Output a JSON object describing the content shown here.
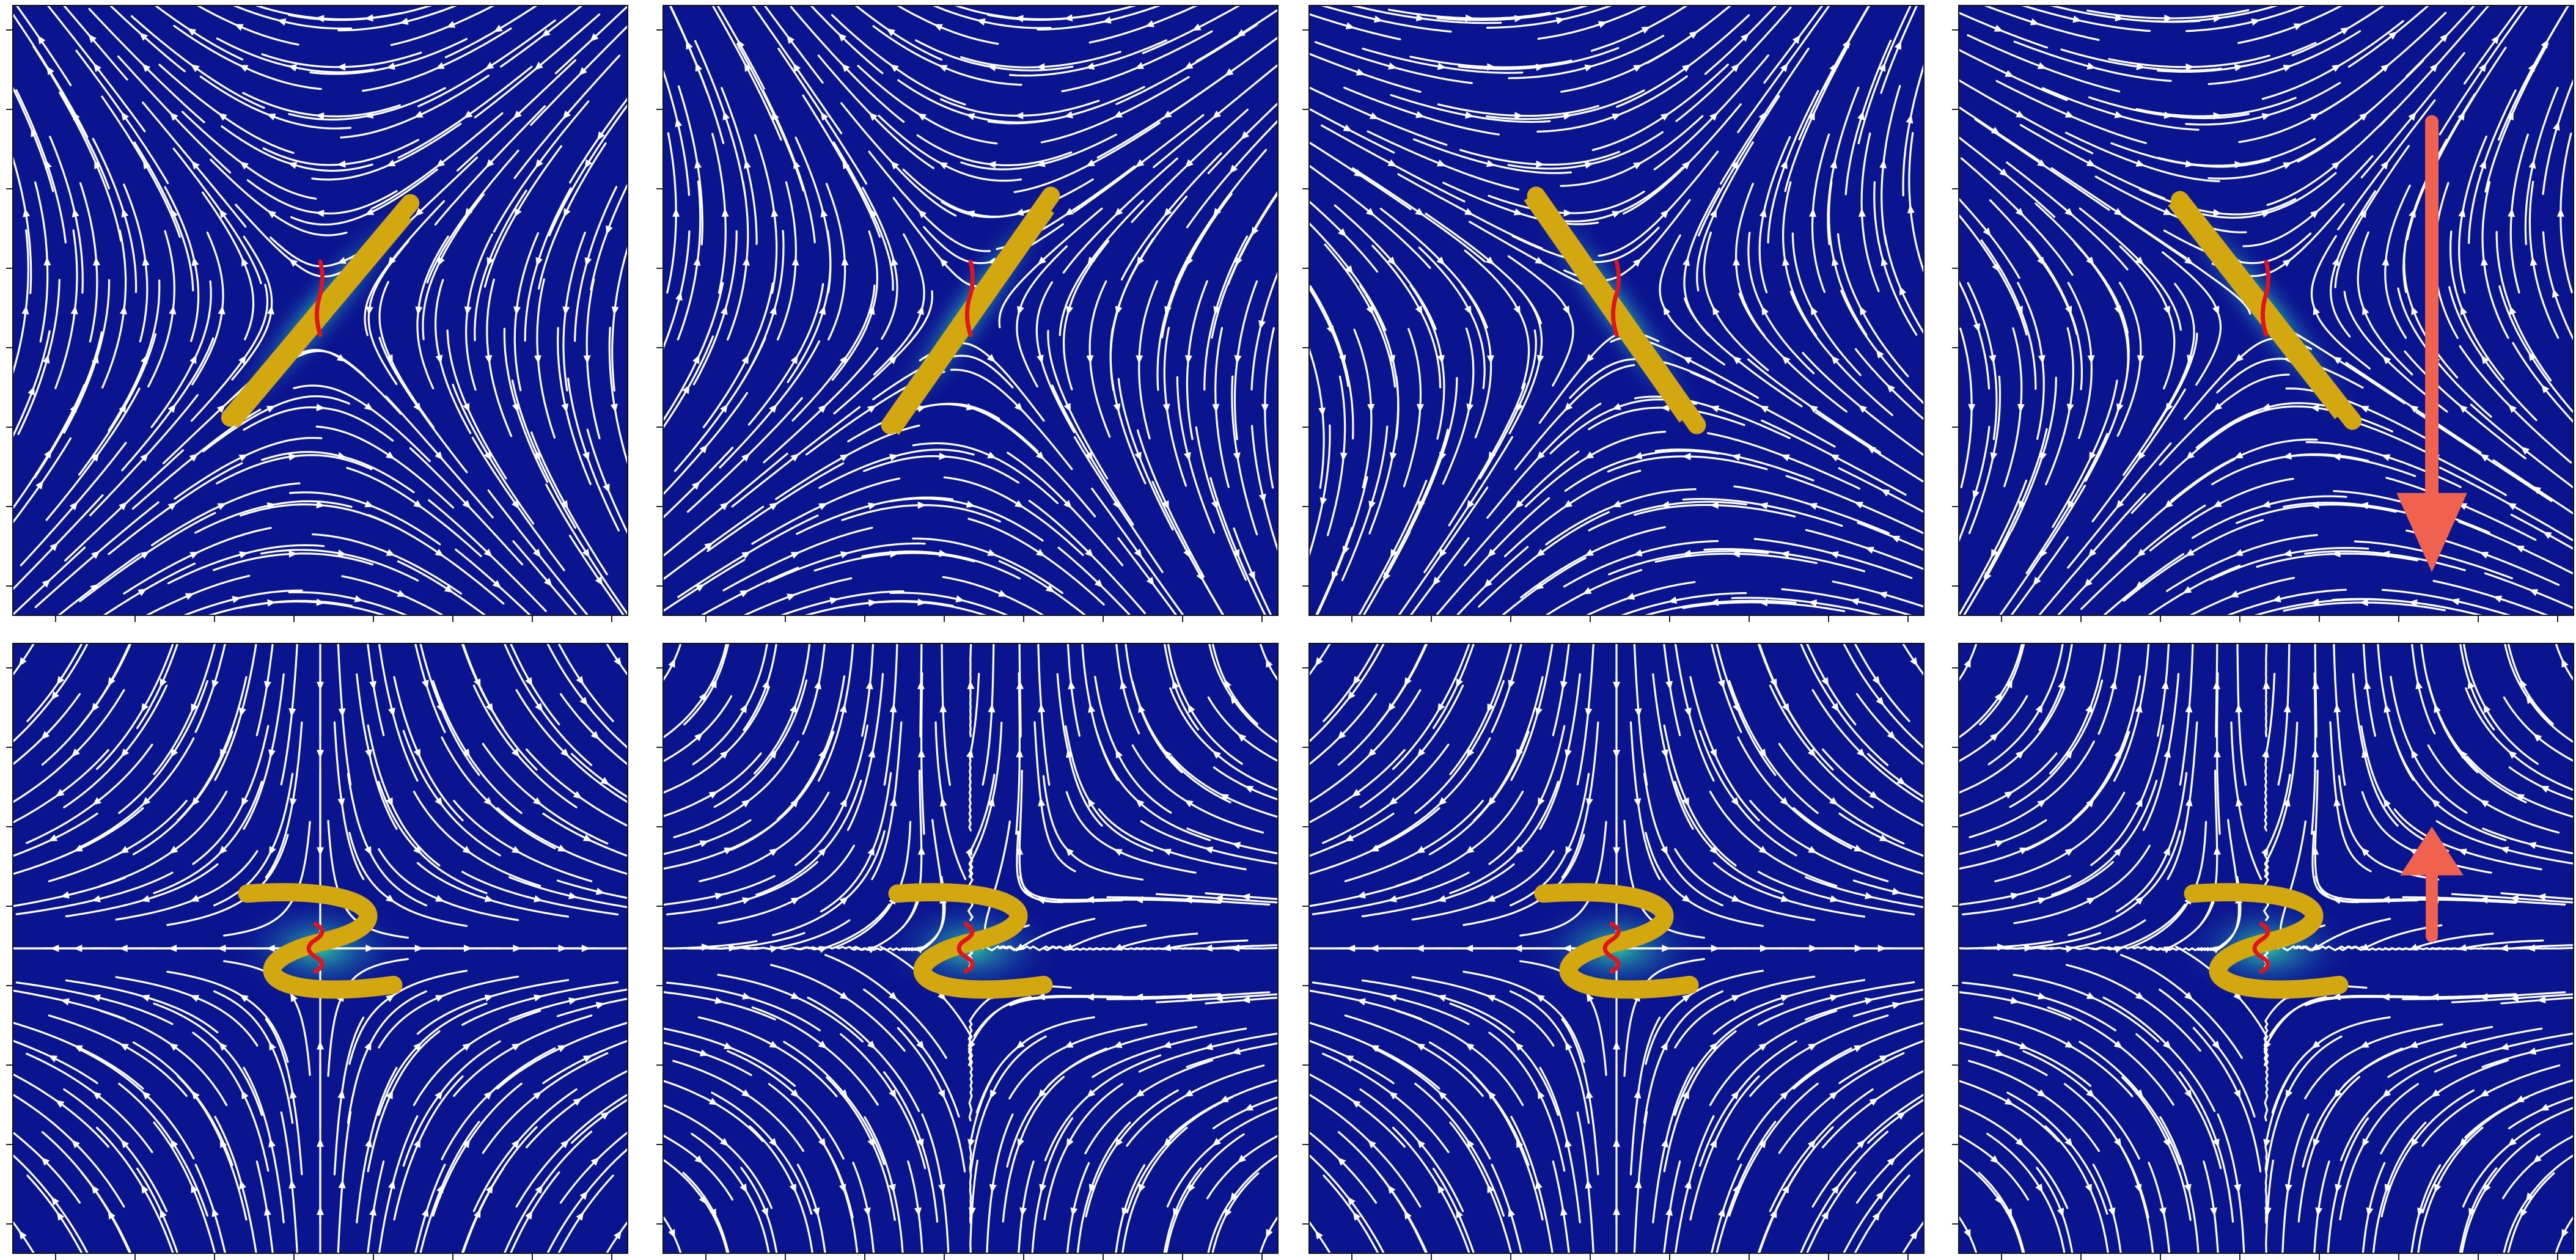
{
  "figure": {
    "background": "#ffffff",
    "field_color": "#0b148f",
    "glow_color": "#2fd6a0",
    "streamline_color": "#ffffff",
    "body_color": "#d2a70f",
    "mid_curve_color": "#e0141c",
    "arrow_color": "#f0614f"
  },
  "panels": [
    {
      "row": 0,
      "col": 0,
      "flow": "saddle",
      "body_shape": "rod",
      "body_angle_deg": -50,
      "arrow": "none"
    },
    {
      "row": 0,
      "col": 1,
      "flow": "saddle",
      "body_shape": "rod",
      "body_angle_deg": -55,
      "arrow": "none"
    },
    {
      "row": 0,
      "col": 2,
      "flow": "saddle",
      "body_shape": "rod",
      "body_angle_deg": 55,
      "arrow": "none"
    },
    {
      "row": 0,
      "col": 3,
      "flow": "saddle",
      "body_shape": "rod",
      "body_angle_deg": 52,
      "arrow": "down"
    },
    {
      "row": 1,
      "col": 0,
      "flow": "extensional",
      "body_shape": "s-curve",
      "body_angle_deg": 0,
      "arrow": "none"
    },
    {
      "row": 1,
      "col": 1,
      "flow": "quadrupole-vortex",
      "body_shape": "s-curve",
      "body_angle_deg": 0,
      "arrow": "none"
    },
    {
      "row": 1,
      "col": 2,
      "flow": "extensional",
      "body_shape": "s-curve",
      "body_angle_deg": 0,
      "arrow": "none"
    },
    {
      "row": 1,
      "col": 3,
      "flow": "quadrupole-vortex",
      "body_shape": "s-curve",
      "body_angle_deg": 0,
      "arrow": "up"
    }
  ]
}
